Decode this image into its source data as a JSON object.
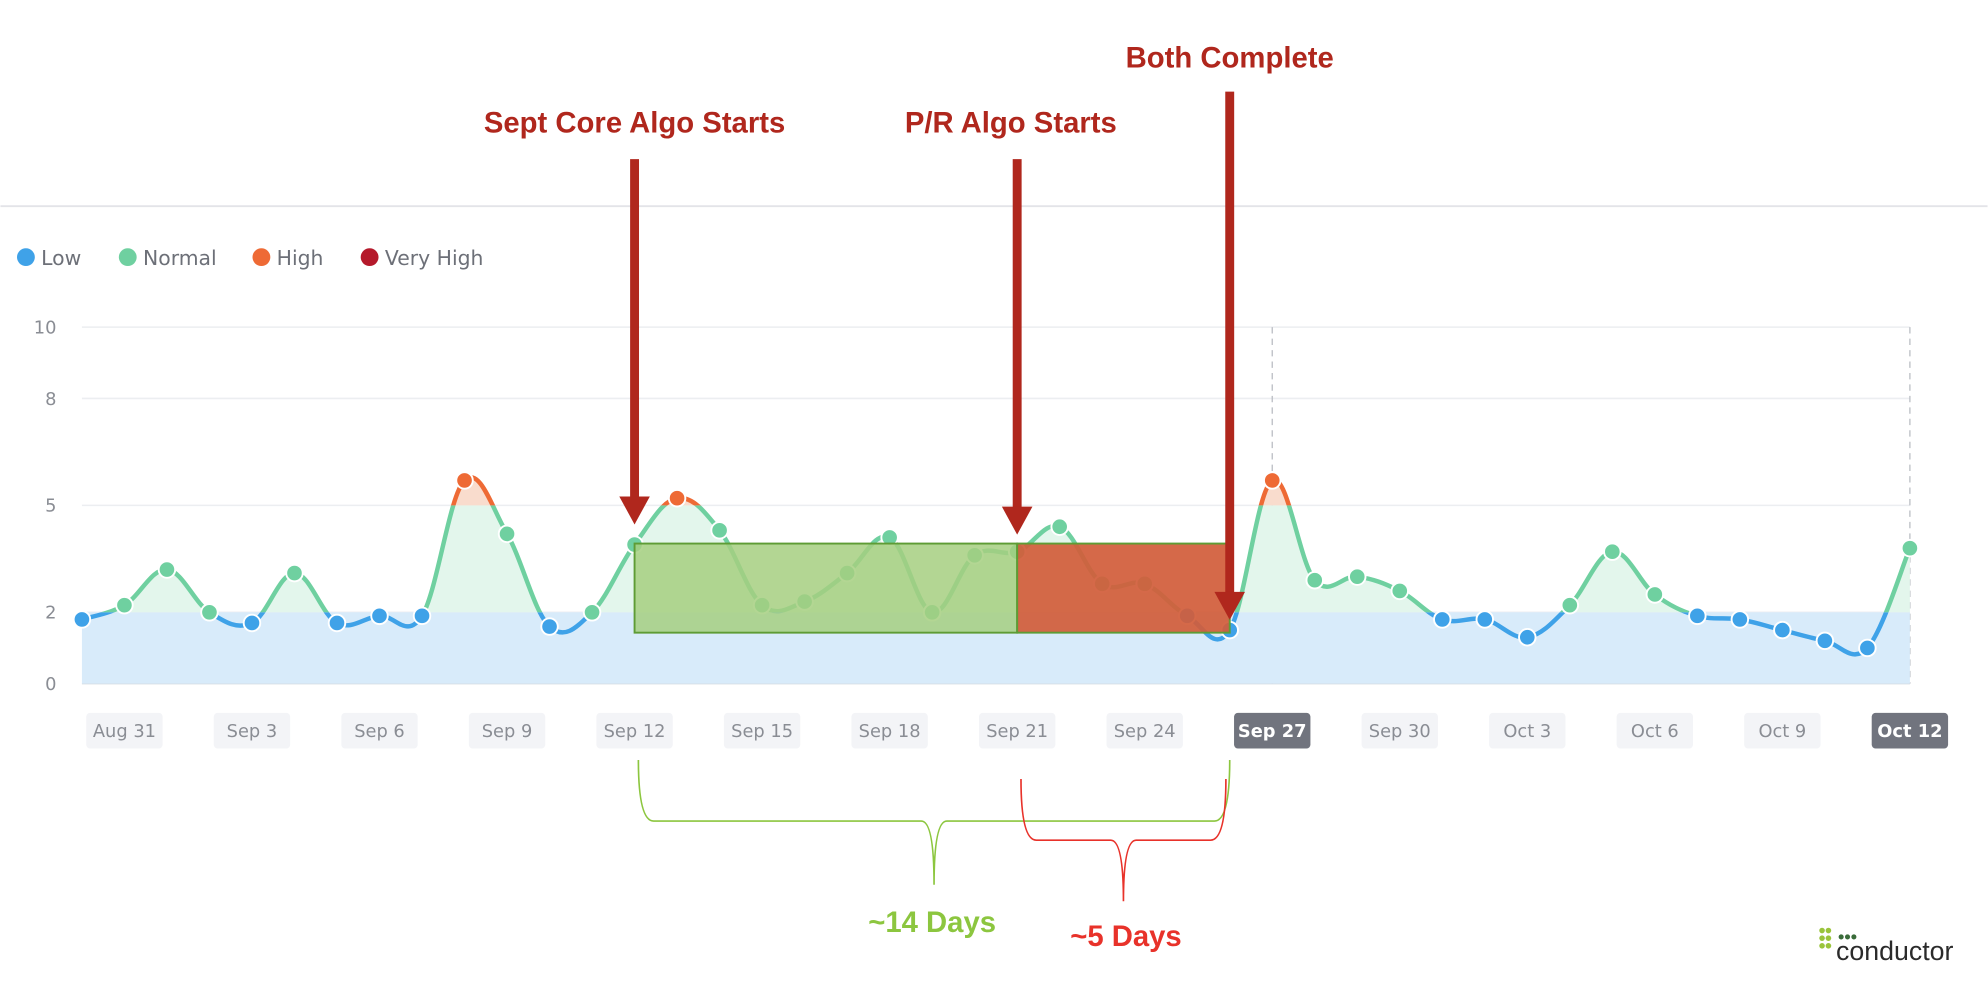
{
  "chart_data": {
    "type": "line",
    "title": "",
    "xlabel": "",
    "ylabel": "",
    "ylim": [
      0,
      10
    ],
    "yticks": [
      0,
      2,
      5,
      8,
      10
    ],
    "thresholds": {
      "low_below": 2,
      "high_above": 5
    },
    "grid": true,
    "legend_placement": "top-left",
    "legend": [
      {
        "label": "Low",
        "color": "#3fa2e8"
      },
      {
        "label": "Normal",
        "color": "#6fd0a0"
      },
      {
        "label": "High",
        "color": "#ee6a35"
      },
      {
        "label": "Very High",
        "color": "#b5192b"
      }
    ],
    "x": [
      "Aug 30",
      "Aug 31",
      "Sep 1",
      "Sep 2",
      "Sep 3",
      "Sep 4",
      "Sep 5",
      "Sep 6",
      "Sep 7",
      "Sep 8",
      "Sep 9",
      "Sep 10",
      "Sep 11",
      "Sep 12",
      "Sep 13",
      "Sep 14",
      "Sep 15",
      "Sep 16",
      "Sep 17",
      "Sep 18",
      "Sep 19",
      "Sep 20",
      "Sep 21",
      "Sep 22",
      "Sep 23",
      "Sep 24",
      "Sep 25",
      "Sep 26",
      "Sep 27",
      "Sep 28",
      "Sep 29",
      "Sep 30",
      "Oct 1",
      "Oct 2",
      "Oct 3",
      "Oct 4",
      "Oct 5",
      "Oct 6",
      "Oct 7",
      "Oct 8",
      "Oct 9",
      "Oct 10",
      "Oct 11",
      "Oct 12"
    ],
    "values": [
      1.8,
      2.2,
      3.2,
      2.0,
      1.7,
      3.1,
      1.7,
      1.9,
      1.9,
      5.7,
      4.2,
      1.6,
      2.0,
      3.9,
      5.2,
      4.3,
      2.2,
      2.3,
      3.1,
      4.1,
      2.0,
      3.6,
      3.7,
      4.4,
      2.8,
      2.8,
      1.9,
      1.5,
      5.7,
      2.9,
      3.0,
      2.6,
      1.8,
      1.8,
      1.3,
      2.2,
      3.7,
      2.5,
      1.9,
      1.8,
      1.5,
      1.2,
      1.0,
      3.8
    ],
    "xtick_labels": [
      "Aug 31",
      "Sep 3",
      "Sep 6",
      "Sep 9",
      "Sep 12",
      "Sep 15",
      "Sep 18",
      "Sep 21",
      "Sep 24",
      "Sep 27",
      "Sep 30",
      "Oct 3",
      "Oct 6",
      "Oct 9",
      "Oct 12"
    ],
    "highlighted_ticks": [
      "Sep 27",
      "Oct 12"
    ],
    "annotations": {
      "core_start": {
        "text": "Sept Core Algo Starts",
        "date": "Sep 12"
      },
      "pr_start": {
        "text": "P/R Algo Starts",
        "date": "Sep 21"
      },
      "both_complete": {
        "text": "Both Complete",
        "date": "Sep 26"
      },
      "core_span": {
        "text": "~14 Days",
        "from": "Sep 12",
        "to": "Sep 26",
        "color": "#8cc63f"
      },
      "pr_span": {
        "text": "~5 Days",
        "from": "Sep 21",
        "to": "Sep 26",
        "color": "#e8322a"
      }
    },
    "annotation_color": "#b0271d"
  },
  "logo": {
    "text": "conductor"
  }
}
